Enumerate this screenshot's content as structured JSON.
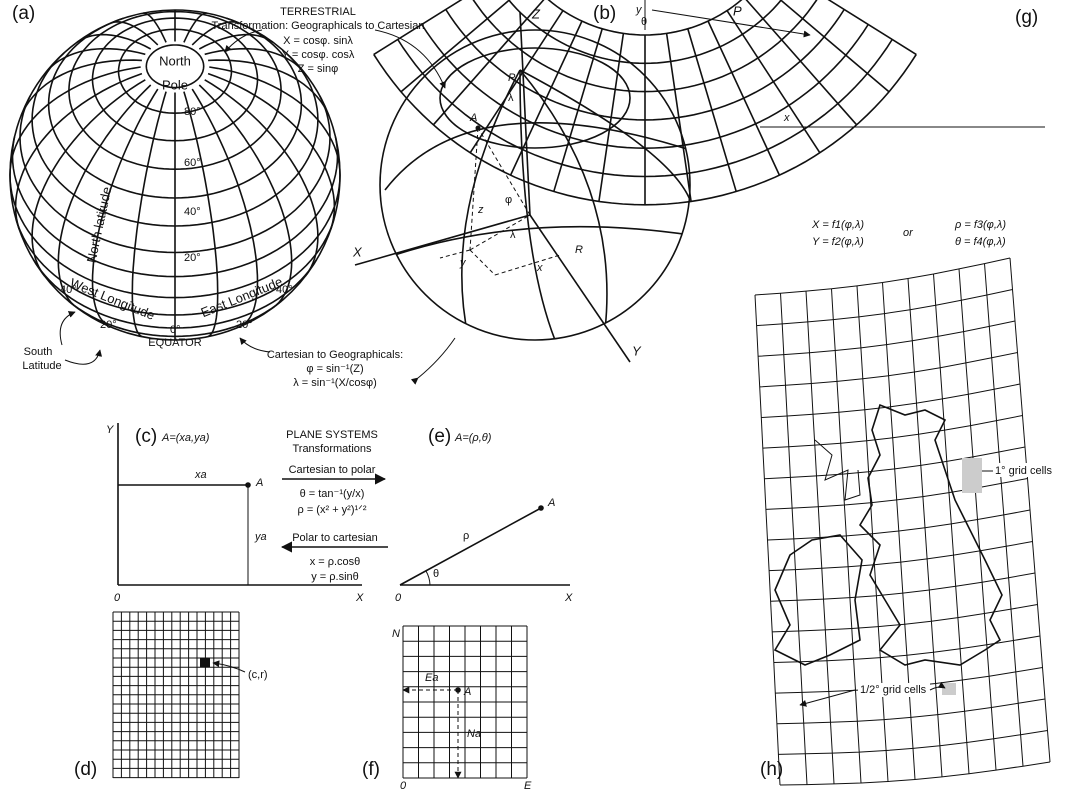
{
  "panel_a": {
    "label": "(a)",
    "north": "North",
    "pole": "Pole",
    "lat_80": "80°",
    "lat_60": "60°",
    "lat_40": "40°",
    "lat_20": "20°",
    "north_latitude": "North latitude",
    "west_longitude": "West Longitude",
    "east_longitude": "East Longitude",
    "lon_w40": "40°",
    "lon_w20": "20°",
    "lon_0": "0°",
    "lon_e20": "20°",
    "lon_e40": "40°",
    "equator": "EQUATOR",
    "south": "South",
    "latitude": "Latitude"
  },
  "terrestrial": {
    "title": "TERRESTRIAL",
    "subtitle": "Transformation: Geographicals to Cartesian",
    "eq_x": "X = cosφ. sinλ",
    "eq_y": "Y = cosφ. cosλ",
    "eq_z": "Z = sinφ",
    "inverse_title": "Cartesian to Geographicals:",
    "eq_phi": "φ = sin⁻¹(Z)",
    "eq_lambda": "λ = sin⁻¹(X/cosφ)"
  },
  "panel_b": {
    "label": "(b)",
    "z_axis": "Z",
    "p": "P",
    "lambda_top": "λ",
    "a": "A",
    "z": "z",
    "phi": "φ",
    "lambda": "λ",
    "y": "y",
    "x": "x",
    "r": "R",
    "x_axis": "X",
    "y_axis": "Y"
  },
  "panel_c": {
    "label": "(c)",
    "point": "A=(xa,ya)",
    "y_axis": "Y",
    "xa": "xa",
    "a": "A",
    "ya": "ya",
    "origin": "0",
    "x_axis": "X"
  },
  "plane": {
    "title": "PLANE SYSTEMS",
    "subtitle": "Transformations",
    "to_polar": "Cartesian to polar",
    "eq_theta": "θ = tan⁻¹(y/x)",
    "eq_rho": "ρ = (x² + y²)¹ᐟ²",
    "to_cartesian": "Polar to cartesian",
    "eq_x": "x = ρ.cosθ",
    "eq_y": "y = ρ.sinθ"
  },
  "panel_e": {
    "label": "(e)",
    "point": "A=(ρ,θ)",
    "a": "A",
    "rho": "ρ",
    "theta": "θ",
    "origin": "0",
    "x_axis": "X"
  },
  "panel_d": {
    "label": "(d)",
    "cell": "(c,r)"
  },
  "panel_f": {
    "label": "(f)",
    "n": "N",
    "ea": "Ea",
    "a": "A",
    "na": "Na",
    "origin": "0",
    "e": "E"
  },
  "panel_g": {
    "label": "(g)",
    "y": "y",
    "theta": "θ",
    "p": "P",
    "x": "x",
    "eq_x": "X = f1(φ,λ)",
    "eq_y": "Y = f2(φ,λ)",
    "or": "or",
    "eq_rho": "ρ = f3(φ,λ)",
    "eq_theta": "θ = f4(φ,λ)"
  },
  "panel_h": {
    "label": "(h)",
    "one_degree": "1° grid cells",
    "half_degree": "1/2° grid cells"
  }
}
